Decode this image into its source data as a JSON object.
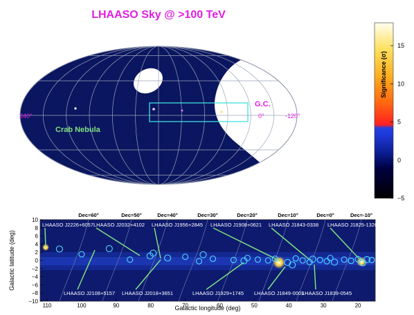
{
  "chart_data": [
    {
      "type": "heatmap",
      "title": "LHAASO Sky @ >100 TeV",
      "projection": "aitoff (galactic, all-sky)",
      "longitude_labels": [
        "240°",
        "0°",
        "-120°"
      ],
      "annotations": [
        {
          "text": "G.C.",
          "color": "#e21ee2"
        },
        {
          "text": "Crab Nebula",
          "color": "#7fe07f"
        }
      ],
      "highlight_box": {
        "l_range": [
          -20,
          20
        ],
        "b_range": [
          -10,
          10
        ],
        "color": "#3fe0e0"
      },
      "colorbar": {
        "label": "Significance (σ)",
        "min": -5,
        "max": 18,
        "ticks": [
          -5,
          0,
          5,
          10,
          15
        ],
        "tick_labels": [
          "−5",
          "0",
          "5",
          "10",
          "15"
        ]
      },
      "colors": {
        "background": "#0b1660",
        "outside_fov": "#ffffff",
        "title": "#e21ee2"
      }
    },
    {
      "type": "heatmap",
      "xlabel": "Galactic longitude (deg)",
      "ylabel": "Galactic latitude (deg)",
      "xlim": [
        112,
        15
      ],
      "ylim": [
        -10,
        10
      ],
      "x_ticks": [
        110,
        100,
        90,
        80,
        70,
        60,
        50,
        40,
        30,
        20
      ],
      "y_ticks": [
        -10,
        -8,
        -6,
        -4,
        -2,
        0,
        2,
        4,
        6,
        8,
        10
      ],
      "dec_labels": [
        "Dec=60°",
        "Dec=50°",
        "Dec=40°",
        "Dec=30°",
        "Dec=20°",
        "Dec=10°",
        "Dec=0°",
        "Dec=-10°"
      ],
      "source_labels_top": [
        "LHAASO J2226+6057",
        "LHAASO J2032+4102",
        "LHAASO J1956+2845",
        "LHAASO J1908+0621",
        "LHAASO J1843-0338",
        "LHAASO J1825-1326"
      ],
      "source_labels_bottom": [
        "LHAASO J2108+5157",
        "LHAASO J2018+3651",
        "LHAASO J1929+1745",
        "LHAASO J1849-0003",
        "LHAASO J1839-0545"
      ],
      "sources": [
        {
          "l": 106.4,
          "b": 2.8
        },
        {
          "l": 92.0,
          "b": 2.9
        },
        {
          "l": 80.2,
          "b": 1.1
        },
        {
          "l": 79.3,
          "b": 1.8
        },
        {
          "l": 75.1,
          "b": 0.6
        },
        {
          "l": 64.8,
          "b": 1.4
        },
        {
          "l": 53.0,
          "b": -0.1
        },
        {
          "l": 40.4,
          "b": -0.5
        },
        {
          "l": 39.0,
          "b": -1.1
        },
        {
          "l": 33.1,
          "b": 0.3
        },
        {
          "l": 26.8,
          "b": -0.4
        },
        {
          "l": 18.6,
          "b": -0.6
        },
        {
          "l": 17.4,
          "b": 0.2
        }
      ],
      "colors": {
        "background": "#0d1a6e",
        "circles": "#4fd8ff",
        "lines": "#7fe07f"
      }
    }
  ]
}
